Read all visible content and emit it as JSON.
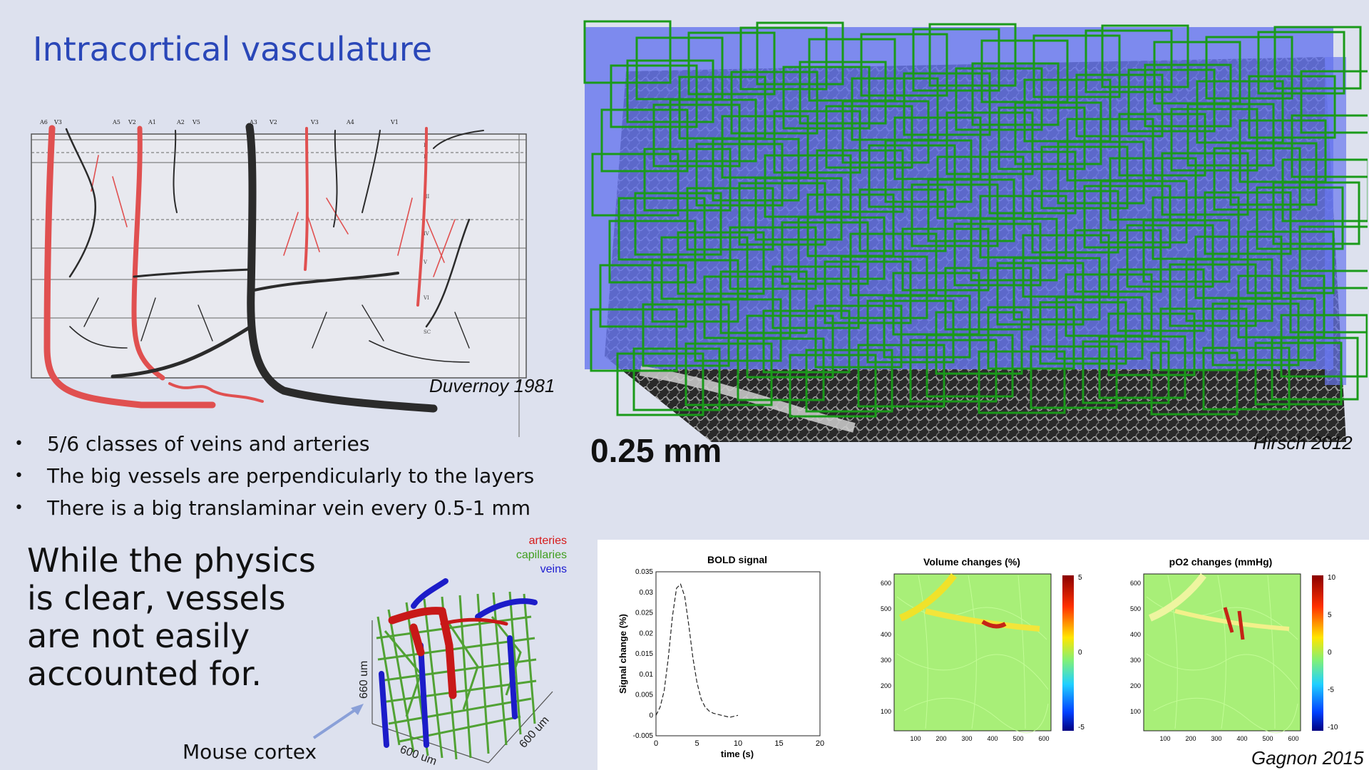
{
  "title": "Intracortical vasculature",
  "duvernoy": {
    "caption": "Duvernoy 1981",
    "vessel_labels": [
      "A6",
      "V3",
      "A5",
      "V2",
      "A1",
      "A2",
      "V5",
      "A3",
      "V2",
      "V3",
      "A4",
      "V1"
    ],
    "layer_labels": [
      "I",
      "II",
      "III",
      "IV",
      "V",
      "VI",
      "SC"
    ]
  },
  "bullets": [
    "5/6 classes of veins and arteries",
    "The big vessels are perpendicularly to the layers",
    "There is a big translaminar vein every 0.5-1 mm"
  ],
  "physics_text": "While the physics is clear, vessels are not easily accounted for.",
  "mouse": {
    "label": "Mouse cortex",
    "legend": [
      {
        "name": "arteries",
        "color": "#d61a1a"
      },
      {
        "name": "capillaries",
        "color": "#3f9e1e"
      },
      {
        "name": "veins",
        "color": "#1b1bd0"
      }
    ],
    "axis_vertical": "660 um",
    "axis_front": "600 um",
    "axis_side": "600 um"
  },
  "hirsch": {
    "scale_label": "0.25 mm",
    "caption": "Hirsch 2012"
  },
  "gagnon": {
    "caption": "Gagnon 2015",
    "bold": {
      "title": "BOLD signal",
      "xlabel": "time (s)",
      "ylabel": "Signal change (%)",
      "xticks": [
        "0",
        "5",
        "10",
        "15",
        "20"
      ],
      "yticks": [
        "-0.005",
        "0",
        "0.005",
        "0.01",
        "0.015",
        "0.02",
        "0.025",
        "0.03",
        "0.035"
      ]
    },
    "volume": {
      "title": "Volume changes (%)",
      "xticks": [
        "100",
        "200",
        "300",
        "400",
        "500",
        "600"
      ],
      "yticks": [
        "100",
        "200",
        "300",
        "400",
        "500",
        "600"
      ],
      "cbar": [
        "5",
        "0",
        "-5"
      ]
    },
    "po2": {
      "title": "pO2 changes (mmHg)",
      "xticks": [
        "100",
        "200",
        "300",
        "400",
        "500",
        "600"
      ],
      "yticks": [
        "100",
        "200",
        "300",
        "400",
        "500",
        "600"
      ],
      "cbar": [
        "10",
        "5",
        "0",
        "-5",
        "-10"
      ]
    }
  },
  "chart_data": {
    "type": "line",
    "title": "BOLD signal",
    "xlabel": "time (s)",
    "ylabel": "Signal change (%)",
    "xlim": [
      0,
      20
    ],
    "ylim": [
      -0.005,
      0.035
    ],
    "series": [
      {
        "x": [
          0,
          0.5,
          1,
          1.5,
          2,
          2.5,
          3,
          3.5,
          4,
          4.5,
          5,
          5.5,
          6,
          6.5,
          7,
          8,
          9,
          10
        ],
        "values": [
          0,
          0.002,
          0.006,
          0.014,
          0.024,
          0.031,
          0.032,
          0.029,
          0.022,
          0.014,
          0.008,
          0.004,
          0.002,
          0.001,
          0.0005,
          0,
          -0.0005,
          0
        ]
      }
    ]
  }
}
